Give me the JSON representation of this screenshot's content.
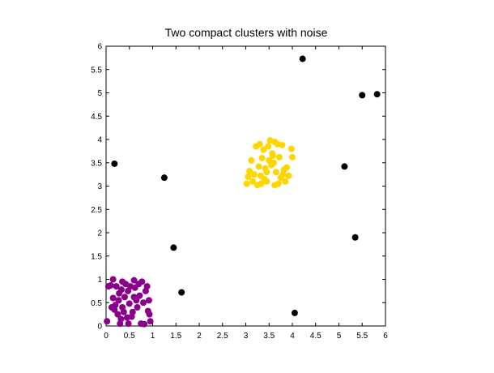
{
  "chart_data": {
    "type": "scatter",
    "title": "Two compact clusters with noise",
    "xlabel": "",
    "ylabel": "",
    "xlim": [
      0,
      6
    ],
    "ylim": [
      0,
      6
    ],
    "xticks": [
      "0",
      "0.5",
      "1",
      "1.5",
      "2",
      "2.5",
      "3",
      "3.5",
      "4",
      "4.5",
      "5",
      "5.5",
      "6"
    ],
    "yticks": [
      "0",
      "0.5",
      "1",
      "1.5",
      "2",
      "2.5",
      "3",
      "3.5",
      "4",
      "4.5",
      "5",
      "5.5",
      "6"
    ],
    "grid": false,
    "series": [
      {
        "color": "#8b008b",
        "points": [
          [
            0.02,
            0.1
          ],
          [
            0.05,
            0.85
          ],
          [
            0.1,
            0.87
          ],
          [
            0.12,
            0.4
          ],
          [
            0.15,
            1.0
          ],
          [
            0.18,
            0.35
          ],
          [
            0.2,
            0.45
          ],
          [
            0.22,
            0.85
          ],
          [
            0.25,
            0.25
          ],
          [
            0.27,
            0.55
          ],
          [
            0.28,
            0.7
          ],
          [
            0.3,
            0.05
          ],
          [
            0.32,
            0.15
          ],
          [
            0.33,
            0.78
          ],
          [
            0.35,
            0.4
          ],
          [
            0.38,
            0.3
          ],
          [
            0.4,
            0.62
          ],
          [
            0.42,
            0.9
          ],
          [
            0.45,
            0.18
          ],
          [
            0.47,
            0.75
          ],
          [
            0.5,
            0.48
          ],
          [
            0.52,
            0.85
          ],
          [
            0.55,
            0.2
          ],
          [
            0.57,
            0.3
          ],
          [
            0.6,
            0.62
          ],
          [
            0.62,
            0.82
          ],
          [
            0.65,
            0.55
          ],
          [
            0.67,
            0.4
          ],
          [
            0.7,
            0.9
          ],
          [
            0.72,
            0.65
          ],
          [
            0.75,
            0.05
          ],
          [
            0.77,
            0.95
          ],
          [
            0.8,
            0.5
          ],
          [
            0.82,
            0.04
          ],
          [
            0.85,
            0.75
          ],
          [
            0.88,
            0.85
          ],
          [
            0.9,
            0.32
          ],
          [
            0.92,
            0.55
          ],
          [
            0.93,
            0.25
          ],
          [
            0.95,
            0.1
          ],
          [
            0.6,
            0.98
          ],
          [
            0.35,
            0.95
          ],
          [
            0.15,
            0.6
          ],
          [
            0.48,
            0.05
          ]
        ]
      },
      {
        "color": "#ffd700",
        "points": [
          [
            3.02,
            3.05
          ],
          [
            3.05,
            3.2
          ],
          [
            3.08,
            3.32
          ],
          [
            3.12,
            3.55
          ],
          [
            3.15,
            3.1
          ],
          [
            3.18,
            3.25
          ],
          [
            3.22,
            3.85
          ],
          [
            3.25,
            3.02
          ],
          [
            3.28,
            3.42
          ],
          [
            3.3,
            3.9
          ],
          [
            3.33,
            3.05
          ],
          [
            3.35,
            3.6
          ],
          [
            3.38,
            3.78
          ],
          [
            3.4,
            3.15
          ],
          [
            3.42,
            3.38
          ],
          [
            3.45,
            3.1
          ],
          [
            3.48,
            3.85
          ],
          [
            3.5,
            3.55
          ],
          [
            3.52,
            3.98
          ],
          [
            3.55,
            3.45
          ],
          [
            3.57,
            3.7
          ],
          [
            3.6,
            3.5
          ],
          [
            3.62,
            3.02
          ],
          [
            3.65,
            3.3
          ],
          [
            3.68,
            3.9
          ],
          [
            3.7,
            3.05
          ],
          [
            3.72,
            3.62
          ],
          [
            3.75,
            3.18
          ],
          [
            3.78,
            3.88
          ],
          [
            3.8,
            3.25
          ],
          [
            3.82,
            3.35
          ],
          [
            3.85,
            3.1
          ],
          [
            3.88,
            3.4
          ],
          [
            3.92,
            3.22
          ],
          [
            3.98,
            3.8
          ],
          [
            4.0,
            3.62
          ],
          [
            3.58,
            3.65
          ],
          [
            3.45,
            3.3
          ],
          [
            3.32,
            3.22
          ],
          [
            3.62,
            3.95
          ]
        ]
      },
      {
        "color": "#000000",
        "points": [
          [
            0.18,
            3.48
          ],
          [
            1.25,
            3.18
          ],
          [
            1.45,
            1.68
          ],
          [
            1.62,
            0.72
          ],
          [
            4.05,
            0.28
          ],
          [
            4.22,
            5.73
          ],
          [
            5.12,
            3.42
          ],
          [
            5.35,
            1.9
          ],
          [
            5.5,
            4.95
          ],
          [
            5.82,
            4.97
          ]
        ]
      }
    ]
  }
}
